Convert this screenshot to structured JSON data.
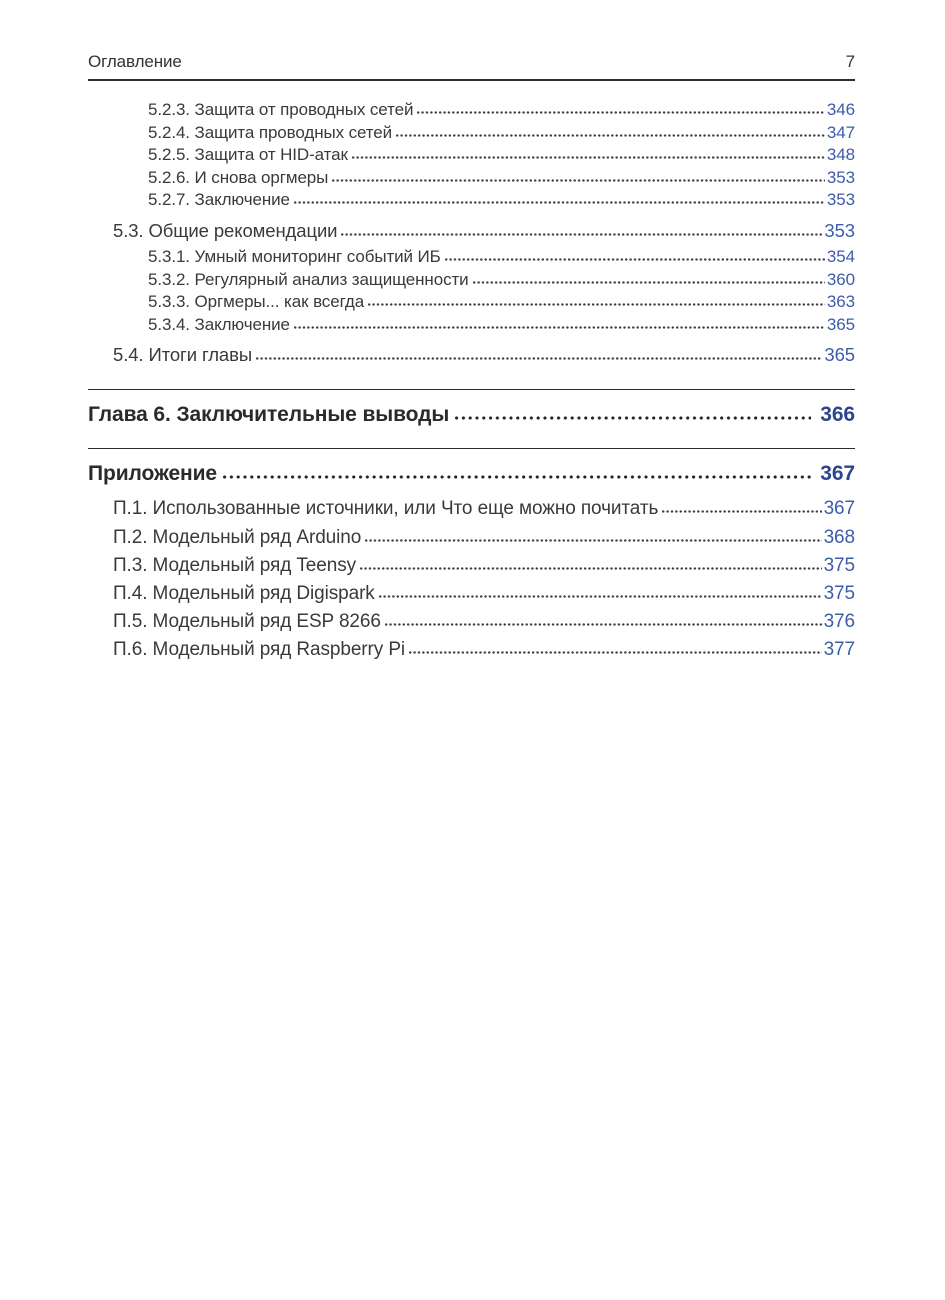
{
  "header": {
    "title": "Оглавление",
    "page_number": "7"
  },
  "colors": {
    "entry_page_number_blue": "#3d5ca9",
    "chapter_page_number_navy": "#2b4590",
    "body_text": "#3a3a3a",
    "rule": "#2b2b2b"
  },
  "toc": {
    "entries": [
      {
        "level": "subsection",
        "label": "5.2.3. Защита от проводных сетей",
        "page": "346"
      },
      {
        "level": "subsection",
        "label": "5.2.4. Защита проводных сетей",
        "page": "347"
      },
      {
        "level": "subsection",
        "label": "5.2.5. Защита от HID-атак",
        "page": "348"
      },
      {
        "level": "subsection",
        "label": "5.2.6. И снова оргмеры",
        "page": "353"
      },
      {
        "level": "subsection",
        "label": "5.2.7. Заключение",
        "page": "353"
      },
      {
        "level": "section",
        "label": "5.3. Общие рекомендации",
        "page": "353"
      },
      {
        "level": "subsection",
        "label": "5.3.1. Умный мониторинг событий ИБ",
        "page": "354"
      },
      {
        "level": "subsection",
        "label": "5.3.2. Регулярный анализ защищенности",
        "page": "360"
      },
      {
        "level": "subsection",
        "label": "5.3.3. Оргмеры... как всегда",
        "page": "363"
      },
      {
        "level": "subsection",
        "label": "5.3.4. Заключение",
        "page": "365"
      },
      {
        "level": "section",
        "label": "5.4. Итоги главы",
        "page": "365"
      },
      {
        "level": "chapter",
        "label": "Глава 6. Заключительные выводы",
        "page": "366"
      },
      {
        "level": "chapter",
        "label": "Приложение",
        "page": "367"
      },
      {
        "level": "appendix-item",
        "label": "П.1. Использованные источники, или Что еще можно почитать",
        "page": "367"
      },
      {
        "level": "appendix-item",
        "label": "П.2. Модельный ряд Arduino",
        "page": "368"
      },
      {
        "level": "appendix-item",
        "label": "П.3. Модельный ряд Teensy",
        "page": "375"
      },
      {
        "level": "appendix-item",
        "label": "П.4. Модельный ряд Digispark",
        "page": "375"
      },
      {
        "level": "appendix-item",
        "label": "П.5. Модельный ряд ESP 8266",
        "page": "376"
      },
      {
        "level": "appendix-item",
        "label": "П.6. Модельный ряд Raspberry Pi",
        "page": "377"
      }
    ]
  }
}
